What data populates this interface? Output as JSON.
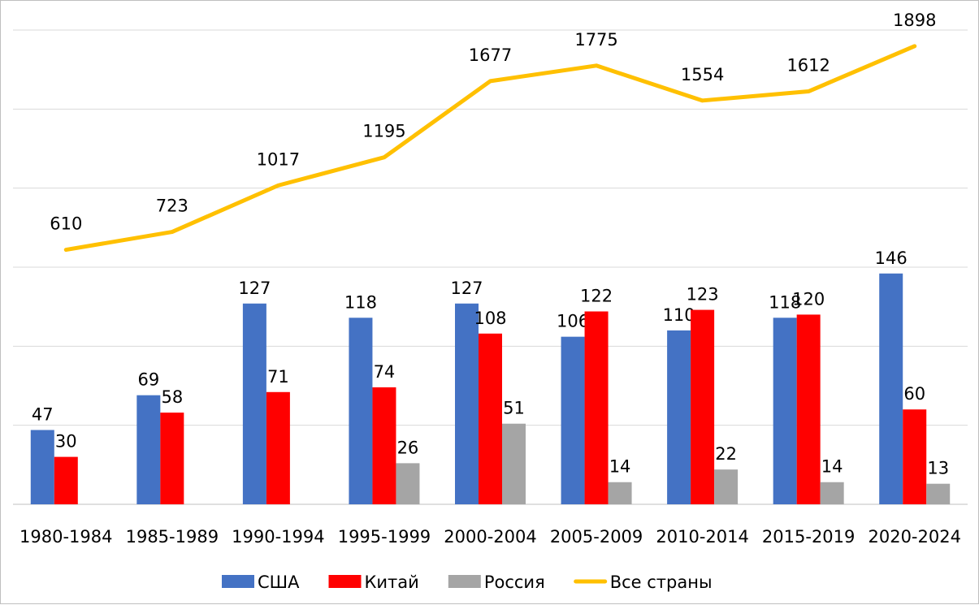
{
  "chart_data": {
    "type": "bar+line",
    "title": "",
    "categories": [
      "1980-1984",
      "1985-1989",
      "1990-1994",
      "1995-1999",
      "2000-2004",
      "2005-2009",
      "2010-2014",
      "2015-2019",
      "2020-2024"
    ],
    "series": [
      {
        "name": "США",
        "type": "bar",
        "axis": "primary",
        "color": "#4472C4",
        "values": [
          47,
          69,
          127,
          118,
          127,
          106,
          110,
          118,
          146
        ]
      },
      {
        "name": "Китай",
        "type": "bar",
        "axis": "primary",
        "color": "#FF0000",
        "values": [
          30,
          58,
          71,
          74,
          108,
          122,
          123,
          120,
          60
        ]
      },
      {
        "name": "Россия",
        "type": "bar",
        "axis": "primary",
        "color": "#A5A5A5",
        "values": [
          null,
          null,
          null,
          26,
          51,
          14,
          22,
          14,
          13
        ]
      },
      {
        "name": "Все страны",
        "type": "line",
        "axis": "secondary",
        "color": "#FFC000",
        "values": [
          610,
          723,
          1017,
          1195,
          1677,
          1775,
          1554,
          1612,
          1898
        ]
      }
    ],
    "primary_ylim": [
      0,
      300
    ],
    "secondary_ylim": [
      -1000,
      2000
    ],
    "grid": true,
    "axes_labels_visible": false,
    "legend_placement": "bottom",
    "data_labels": true
  }
}
